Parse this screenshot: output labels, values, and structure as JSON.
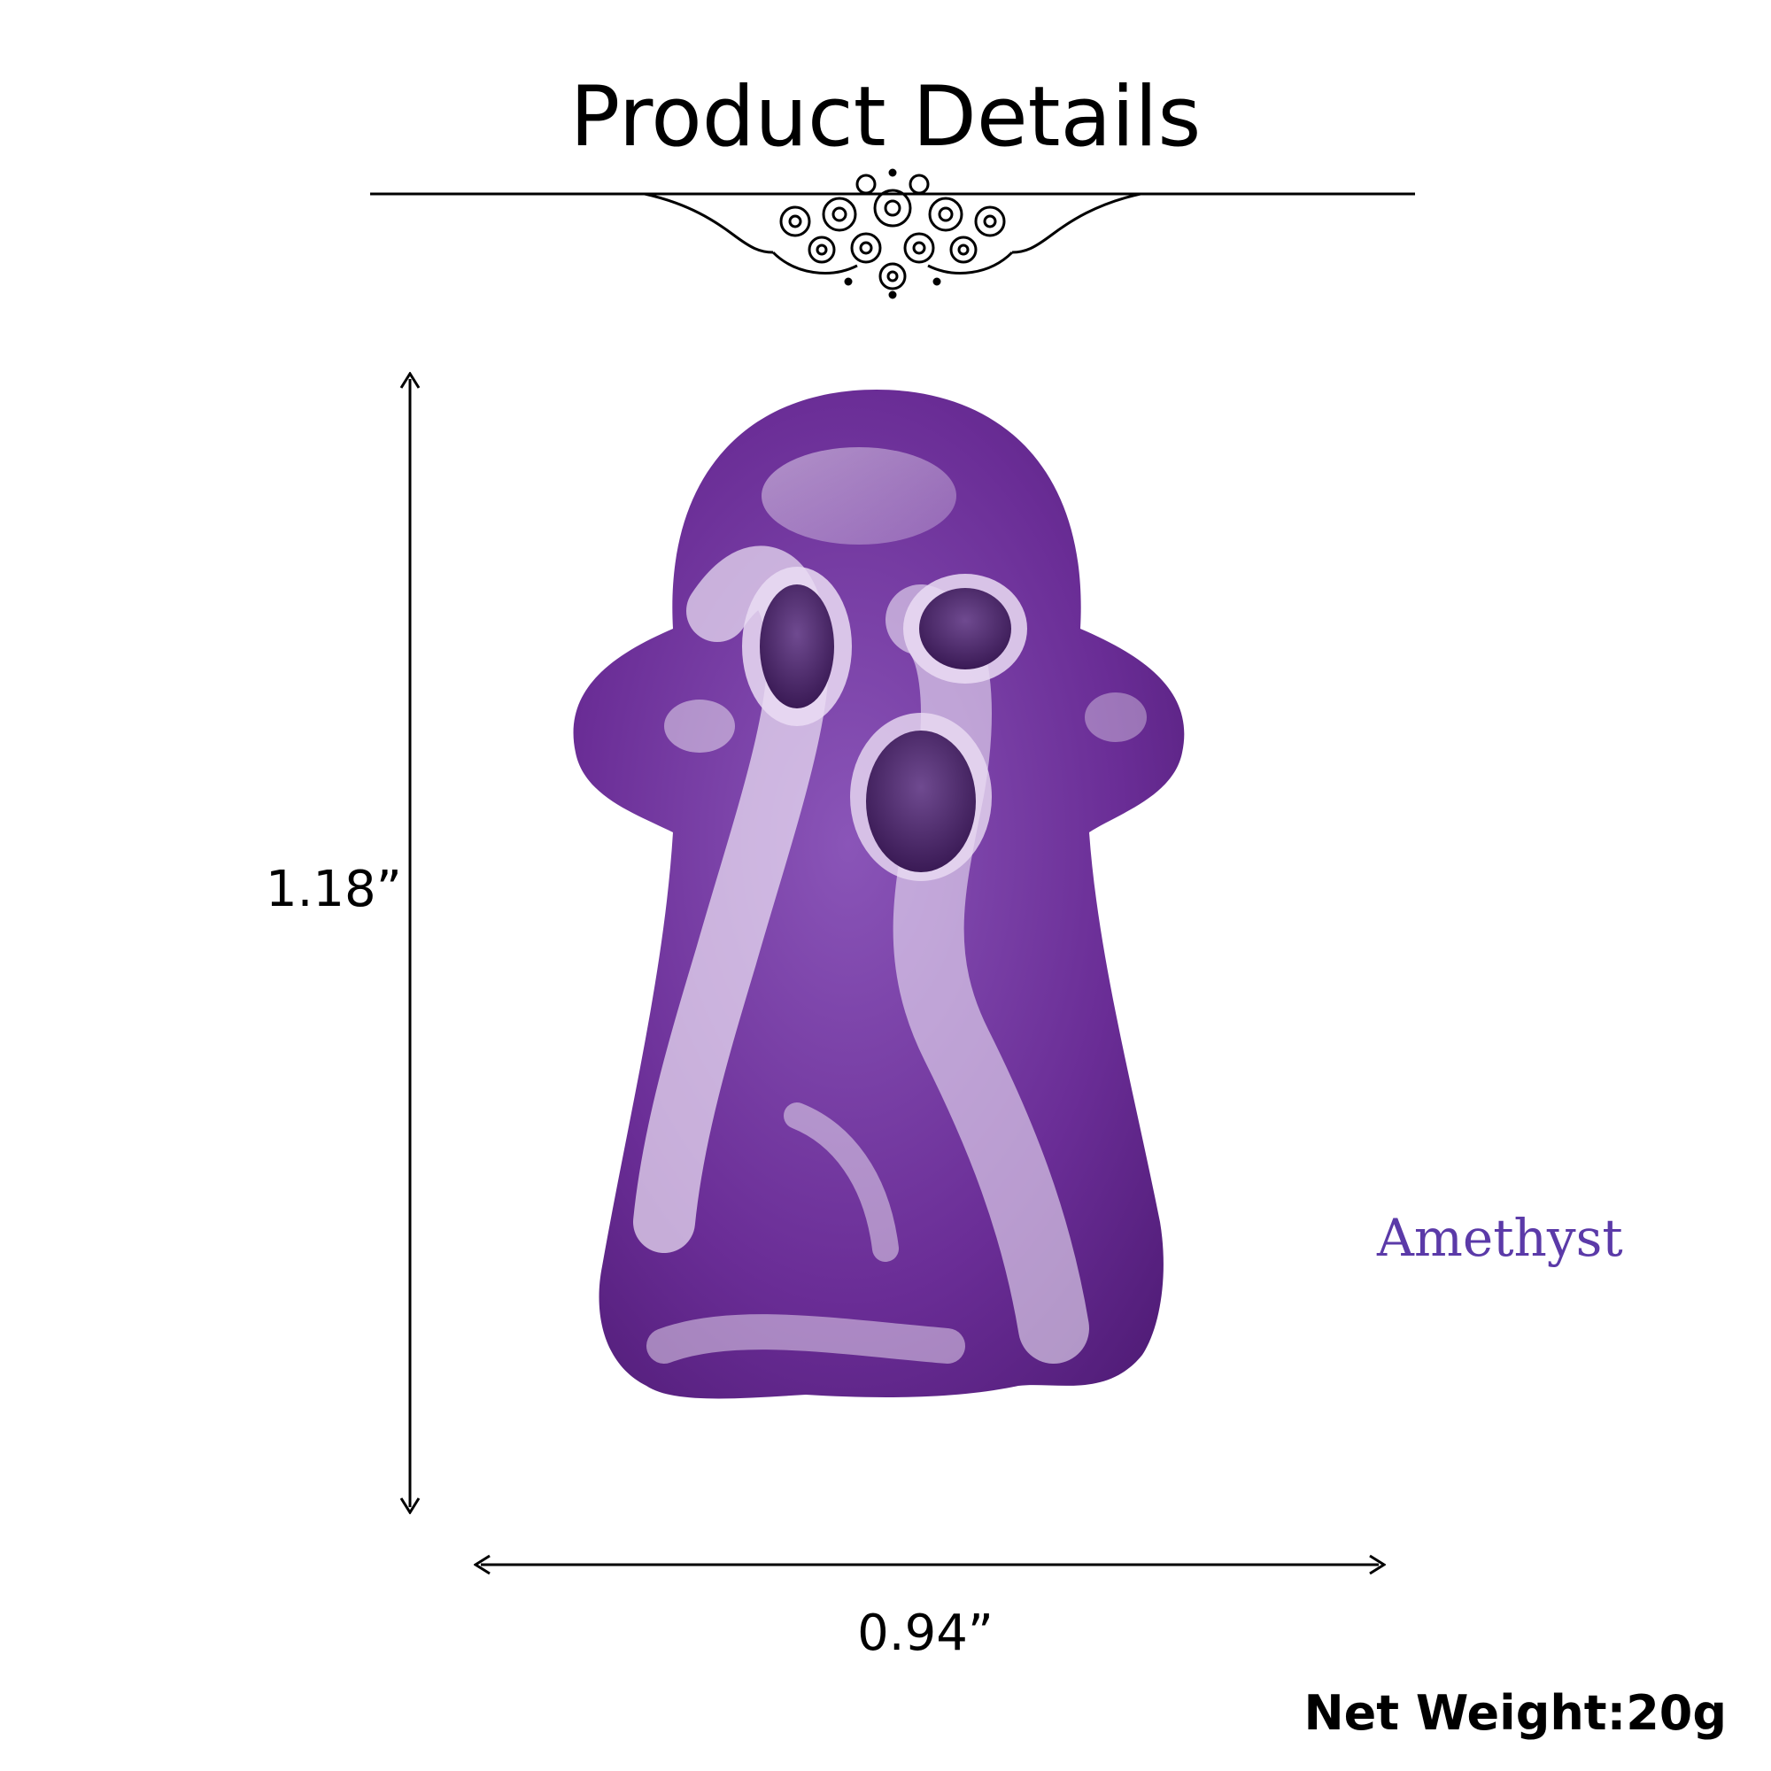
{
  "header": {
    "title": "Product Details"
  },
  "product": {
    "height_label": "1.18”",
    "width_label": "0.94”",
    "material": "Amethyst",
    "net_weight": "Net Weight:20g"
  },
  "colors": {
    "material_text": "#5b3aa8",
    "stone_dark": "#6a2d96",
    "stone_mid": "#8a55b8",
    "stone_light": "#e6d9f0"
  },
  "icons": {
    "divider": "ornamental-scroll-divider-icon",
    "arrow_vertical": "double-arrow-vertical-icon",
    "arrow_horizontal": "double-arrow-horizontal-icon"
  }
}
